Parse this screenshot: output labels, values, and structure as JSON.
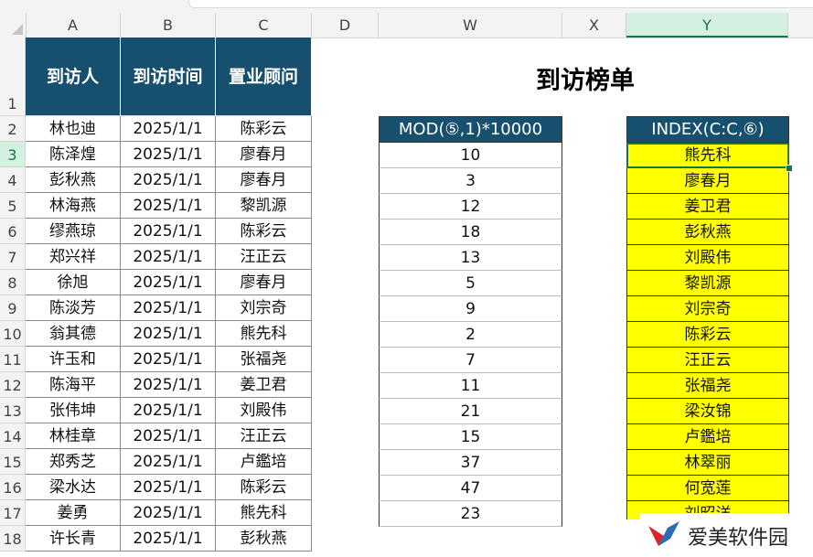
{
  "columns": [
    "A",
    "B",
    "C",
    "D",
    "W",
    "X",
    "Y"
  ],
  "rows": [
    "1",
    "2",
    "3",
    "4",
    "5",
    "6",
    "7",
    "8",
    "9",
    "10",
    "11",
    "12",
    "13",
    "14",
    "15",
    "16",
    "17",
    "18"
  ],
  "table_headers": [
    "到访人",
    "到访时间",
    "置业顾问"
  ],
  "table_rows": [
    [
      "林也迪",
      "2025/1/1",
      "陈彩云"
    ],
    [
      "陈泽煌",
      "2025/1/1",
      "廖春月"
    ],
    [
      "彭秋燕",
      "2025/1/1",
      "廖春月"
    ],
    [
      "林海燕",
      "2025/1/1",
      "黎凯源"
    ],
    [
      "缪燕琼",
      "2025/1/1",
      "陈彩云"
    ],
    [
      "郑兴祥",
      "2025/1/1",
      "汪正云"
    ],
    [
      "徐旭",
      "2025/1/1",
      "廖春月"
    ],
    [
      "陈淡芳",
      "2025/1/1",
      "刘宗奇"
    ],
    [
      "翁其德",
      "2025/1/1",
      "熊先科"
    ],
    [
      "许玉和",
      "2025/1/1",
      "张福尧"
    ],
    [
      "陈海平",
      "2025/1/1",
      "姜卫君"
    ],
    [
      "张伟坤",
      "2025/1/1",
      "刘殿伟"
    ],
    [
      "林桂章",
      "2025/1/1",
      "汪正云"
    ],
    [
      "郑秀芝",
      "2025/1/1",
      "卢鑑培"
    ],
    [
      "梁水达",
      "2025/1/1",
      "陈彩云"
    ],
    [
      "姜勇",
      "2025/1/1",
      "熊先科"
    ],
    [
      "许长青",
      "2025/1/1",
      "彭秋燕"
    ]
  ],
  "title": "到访榜单",
  "w_header": "MOD(⑤,1)*10000",
  "w_values": [
    "10",
    "3",
    "12",
    "18",
    "13",
    "5",
    "9",
    "2",
    "7",
    "11",
    "21",
    "15",
    "37",
    "47",
    "23"
  ],
  "y_header": "INDEX(C:C,⑥)",
  "y_values": [
    "熊先科",
    "廖春月",
    "姜卫君",
    "彭秋燕",
    "刘殿伟",
    "黎凯源",
    "刘宗奇",
    "陈彩云",
    "汪正云",
    "张福尧",
    "梁汝锦",
    "卢鑑培",
    "林翠丽",
    "何宽莲",
    "刘昭洋"
  ],
  "watermark": "爱美软件园",
  "colors": {
    "header_fill": "#17506e",
    "highlight": "#ffff00",
    "selection": "#1e7145"
  }
}
